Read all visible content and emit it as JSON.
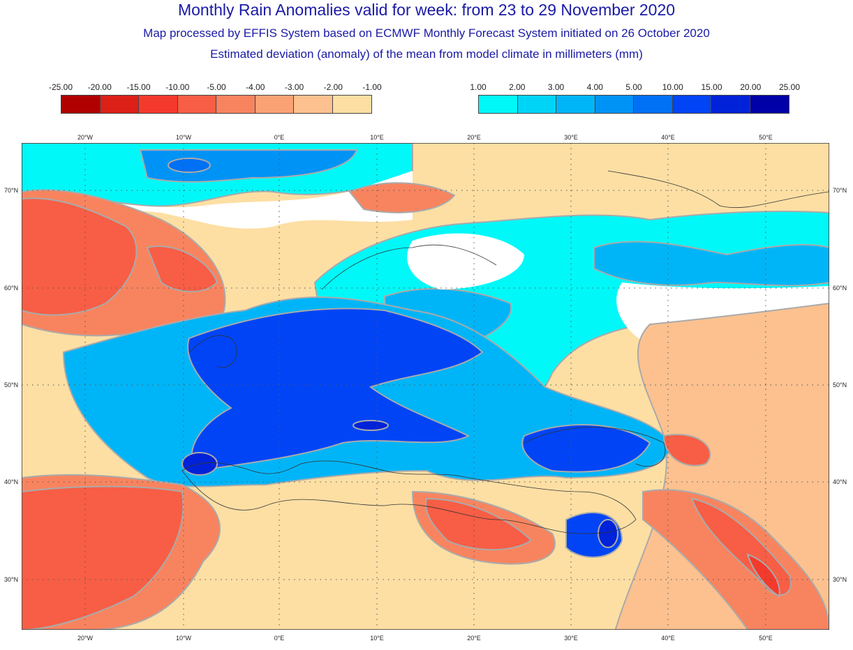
{
  "title": "Monthly Rain Anomalies valid for week: from 23 to 29 November 2020",
  "subtitle1": "Map processed by EFFIS System based on ECMWF Monthly Forecast System initiated on 26 October 2020",
  "subtitle2": "Estimated deviation (anomaly) of the mean from model climate in millimeters (mm)",
  "legend_negative": {
    "labels": [
      "-25.00",
      "-20.00",
      "-15.00",
      "-10.00",
      "-5.00",
      "-4.00",
      "-3.00",
      "-2.00",
      "-1.00"
    ],
    "colors": [
      "#b00000",
      "#dc2018",
      "#f43a2c",
      "#f75e45",
      "#f8845f",
      "#fba275",
      "#fcc18f",
      "#fddfa4"
    ]
  },
  "legend_positive": {
    "labels": [
      "1.00",
      "2.00",
      "3.00",
      "4.00",
      "5.00",
      "10.00",
      "15.00",
      "20.00",
      "25.00"
    ],
    "colors": [
      "#00f8f8",
      "#00d4f6",
      "#00b5f7",
      "#0093f6",
      "#0070f5",
      "#0044f6",
      "#0022d8",
      "#0000a8"
    ]
  },
  "lon_labels": [
    "20°W",
    "10°W",
    "0°E",
    "10°E",
    "20°E",
    "30°E",
    "40°E",
    "50°E"
  ],
  "lat_labels": [
    "70°N",
    "60°N",
    "50°N",
    "40°N",
    "30°N"
  ]
}
